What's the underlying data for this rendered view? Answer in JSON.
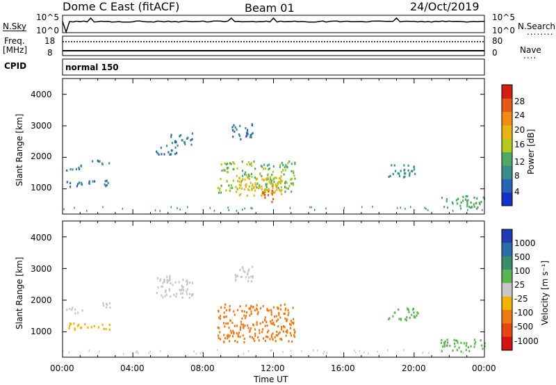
{
  "header": {
    "title": "Dome C East (fitACF)",
    "beam": "Beam 01",
    "date": "24/Oct/2019"
  },
  "top_panels": {
    "nsky_label": "N.Sky",
    "nsky_ticks": [
      "10^5",
      "10^0"
    ],
    "nsearch_label": "N.Search",
    "nsearch_ticks": [
      "10^5",
      "10^0"
    ],
    "freq_label": "Freq.",
    "freq_unit": "[MHz]",
    "freq_ticks": [
      "18",
      "8"
    ],
    "nave_label": "Nave",
    "nave_ticks": [
      "80",
      "0"
    ],
    "cpid_label": "CPID",
    "cpid_value": "normal 150"
  },
  "chart_data": [
    {
      "type": "heatmap",
      "panel": "power",
      "ylabel": "Slant Range [km]",
      "yticks": [
        "1000",
        "2000",
        "3000",
        "4000"
      ],
      "ylim": [
        200,
        4500
      ],
      "xlim": [
        0,
        24
      ],
      "colorbar_label": "Power [dB]",
      "colorbar_ticks": [
        "28",
        "24",
        "20",
        "16",
        "12",
        "8",
        "4"
      ],
      "colorbar_colors": [
        "#1432c8",
        "#2864b4",
        "#3a8c8c",
        "#50a864",
        "#b4c81e",
        "#e6b414",
        "#f08c14",
        "#e65a14",
        "#d21e14"
      ],
      "regions": [
        {
          "t0": 0.2,
          "t1": 1.2,
          "r0": 1600,
          "r1": 1800,
          "value": 6
        },
        {
          "t0": 1.6,
          "t1": 2.7,
          "r0": 1800,
          "r1": 1950,
          "value": 6
        },
        {
          "t0": 0.2,
          "t1": 2.7,
          "r0": 1100,
          "r1": 1300,
          "value": 6
        },
        {
          "t0": 5.3,
          "t1": 6.5,
          "r0": 2100,
          "r1": 2400,
          "value": 6
        },
        {
          "t0": 6.1,
          "t1": 7.4,
          "r0": 2400,
          "r1": 2800,
          "value": 6
        },
        {
          "t0": 8.8,
          "t1": 13.2,
          "r0": 900,
          "r1": 1900,
          "value": 14
        },
        {
          "t0": 10.0,
          "t1": 12.5,
          "r0": 800,
          "r1": 1400,
          "value": 20
        },
        {
          "t0": 11.3,
          "t1": 12.0,
          "r0": 600,
          "r1": 1000,
          "value": 28
        },
        {
          "t0": 9.6,
          "t1": 10.8,
          "r0": 2600,
          "r1": 3100,
          "value": 6
        },
        {
          "t0": 18.5,
          "t1": 20.2,
          "r0": 1400,
          "r1": 1800,
          "value": 8
        },
        {
          "t0": 21.5,
          "t1": 24.0,
          "r0": 400,
          "r1": 800,
          "value": 12
        }
      ]
    },
    {
      "type": "heatmap",
      "panel": "velocity",
      "ylabel": "Slant Range [km]",
      "yticks": [
        "1000",
        "2000",
        "3000",
        "4000"
      ],
      "ylim": [
        200,
        4500
      ],
      "xlim": [
        0,
        24
      ],
      "xticks": [
        "00:00",
        "04:00",
        "08:00",
        "12:00",
        "16:00",
        "20:00",
        "00:00"
      ],
      "xlabel": "Time UT",
      "colorbar_label": "Velocity [m s⁻¹]",
      "colorbar_ticks": [
        "1000",
        "500",
        "100",
        "25",
        "-25",
        "-100",
        "-500",
        "-1000"
      ],
      "colorbar_colors": [
        "#1e3cb4",
        "#2c6aa8",
        "#3a8c6a",
        "#5ab450",
        "#c8c8c8",
        "#f0b400",
        "#f07814",
        "#e64614",
        "#d21414"
      ],
      "regions": [
        {
          "t0": 0.2,
          "t1": 1.2,
          "r0": 1600,
          "r1": 1800,
          "value": 0
        },
        {
          "t0": 1.6,
          "t1": 2.7,
          "r0": 1800,
          "r1": 1950,
          "value": 0
        },
        {
          "t0": 0.2,
          "t1": 2.7,
          "r0": 1100,
          "r1": 1300,
          "value": -50
        },
        {
          "t0": 5.3,
          "t1": 7.4,
          "r0": 2100,
          "r1": 2800,
          "value": 0
        },
        {
          "t0": 8.8,
          "t1": 13.2,
          "r0": 700,
          "r1": 1900,
          "value": -400
        },
        {
          "t0": 9.6,
          "t1": 10.8,
          "r0": 2600,
          "r1": 3100,
          "value": 0
        },
        {
          "t0": 18.5,
          "t1": 20.2,
          "r0": 1400,
          "r1": 1800,
          "value": 80
        },
        {
          "t0": 21.5,
          "t1": 24.0,
          "r0": 400,
          "r1": 800,
          "value": 50
        }
      ]
    }
  ]
}
